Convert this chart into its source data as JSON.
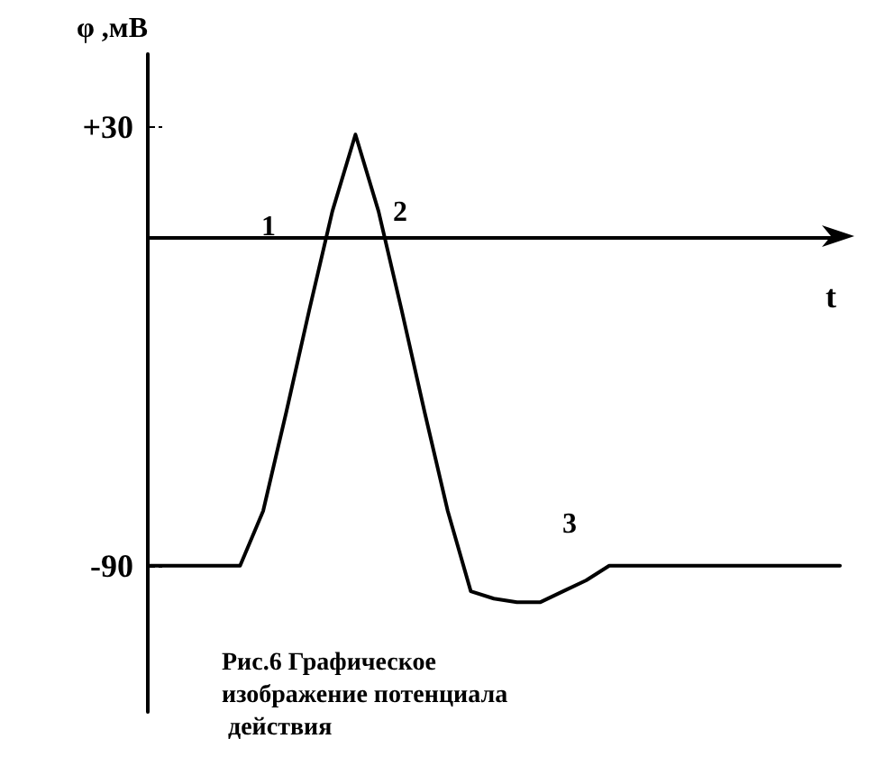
{
  "chart_data": {
    "type": "line",
    "title": "Рис.6 Графическое изображение потенциала действия",
    "xlabel": "t",
    "ylabel": "φ ,мВ",
    "categories": [
      null,
      null,
      null,
      null,
      null,
      null,
      null,
      null,
      null,
      null,
      null,
      null,
      null,
      null,
      null,
      null,
      null,
      null,
      null,
      null,
      null,
      null,
      null,
      null,
      null,
      null,
      null,
      null,
      null,
      null,
      null
    ],
    "series": [
      {
        "color": "#000000",
        "values": [
          -90,
          -90,
          -90,
          -90,
          -90,
          -75,
          -48,
          -20,
          7,
          28,
          7,
          -20,
          -48,
          -75,
          -97,
          -99,
          -100,
          -100,
          -97,
          -94,
          -90,
          -90,
          -90,
          -90,
          -90,
          -90,
          -90,
          -90,
          -90,
          -90,
          -90
        ]
      }
    ],
    "ylim": [
      -130,
      50
    ],
    "yticks": [
      {
        "value": 30,
        "label": "+30"
      },
      -90
    ],
    "annotations": [
      "1",
      "2",
      "3"
    ],
    "tick_labels": "y",
    "grid": false,
    "marker": "none",
    "line_style": "solid"
  }
}
